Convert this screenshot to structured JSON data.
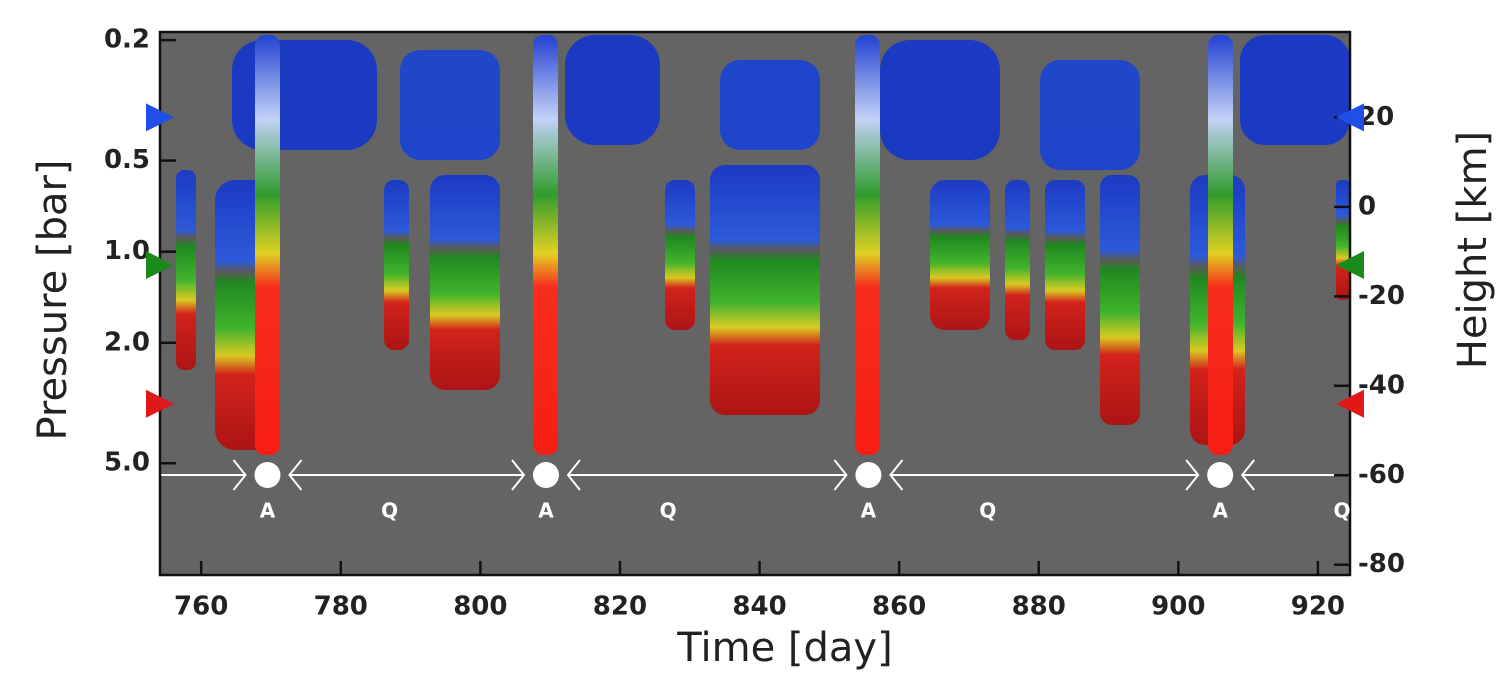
{
  "chart_data": {
    "type": "heatmap",
    "x_label": "Time [day]",
    "y_label": "Pressure [bar]",
    "y2_label": "Height [km]",
    "xlim": [
      754.1,
      924.6
    ],
    "xticks": [
      760,
      780,
      800,
      820,
      840,
      860,
      880,
      900,
      920
    ],
    "ylim": [
      11.7,
      0.188
    ],
    "log_y": true,
    "yticks": [
      0.2,
      0.5,
      {
        "value": 1,
        "label": "1.0"
      },
      {
        "value": 2,
        "label": "2.0"
      },
      {
        "value": 5,
        "label": "5.0"
      }
    ],
    "y2lim": [
      -82.3,
      39.1
    ],
    "y2ticks": [
      20,
      0,
      -20,
      -40,
      -60,
      -80
    ],
    "level_markers": [
      {
        "height": 20,
        "color": "#1f4fe8"
      },
      {
        "height": -13,
        "color": "#1a8a1a"
      },
      {
        "height": -44,
        "color": "#e01818"
      }
    ],
    "annotations": [
      {
        "text": "A",
        "x": 769.5
      },
      {
        "text": "Q",
        "x": 787
      },
      {
        "text": "A",
        "x": 809.4
      },
      {
        "text": "Q",
        "x": 826.9
      },
      {
        "text": "A",
        "x": 855.6
      },
      {
        "text": "Q",
        "x": 872.7
      },
      {
        "text": "A",
        "x": 906
      },
      {
        "text": "Q",
        "x": 924
      }
    ]
  }
}
